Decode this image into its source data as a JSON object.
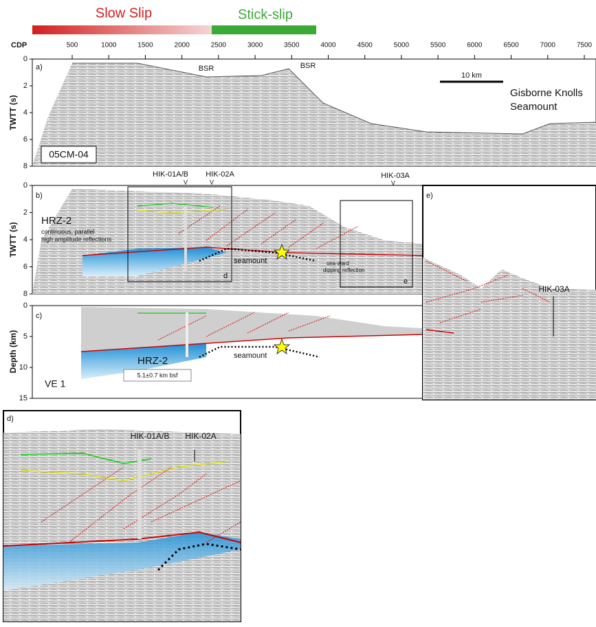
{
  "header": {
    "slow_slip": "Slow Slip",
    "stick_slip": "Stick-slip"
  },
  "cdp_axis": {
    "label": "CDP",
    "ticks": [
      "500",
      "1000",
      "1500",
      "2000",
      "2500",
      "3000",
      "3500",
      "4000",
      "4500",
      "5000",
      "5500",
      "6000",
      "6500",
      "7000",
      "7500"
    ]
  },
  "panels": {
    "a": {
      "label": "a)",
      "y_label": "TWTT (s)",
      "yticks": [
        "0",
        "2",
        "4",
        "6",
        "8"
      ],
      "bsr_1": "BSR",
      "bsr_2": "BSR",
      "scale": "10 km",
      "place_1": "Gisborne Knolls",
      "place_2": "Seamount",
      "line_id": "05CM-04"
    },
    "b": {
      "label": "b)",
      "y_label": "TWTT (s)",
      "yticks": [
        "0",
        "2",
        "4",
        "6",
        "8"
      ],
      "sites": [
        {
          "name": "HIK-01A/B",
          "marker": "V"
        },
        {
          "name": "HIK-02A",
          "marker": "V"
        },
        {
          "name": "HIK-03A",
          "marker": "V"
        }
      ],
      "hrz": "HRZ-2",
      "hrz_note_1": "continuous, parallel",
      "hrz_note_2": "high amplitude reflections",
      "seamount": "seamount",
      "dip_note_1": "sea-ward",
      "dip_note_2": "dipping reflection",
      "box_d": "d",
      "box_e": "e"
    },
    "c": {
      "label": "c)",
      "y_label": "Depth (km)",
      "yticks": [
        "0",
        "5",
        "10",
        "15"
      ],
      "hrz": "HRZ-2",
      "depth": "5.1±0.7 km bsf",
      "seamount": "seamount",
      "ve": "VE 1"
    },
    "d": {
      "label": "d)",
      "site_1": "HIK-01A/B",
      "site_2": "HIK-02A"
    },
    "e": {
      "label": "e)",
      "site": "HIK-03A"
    }
  }
}
